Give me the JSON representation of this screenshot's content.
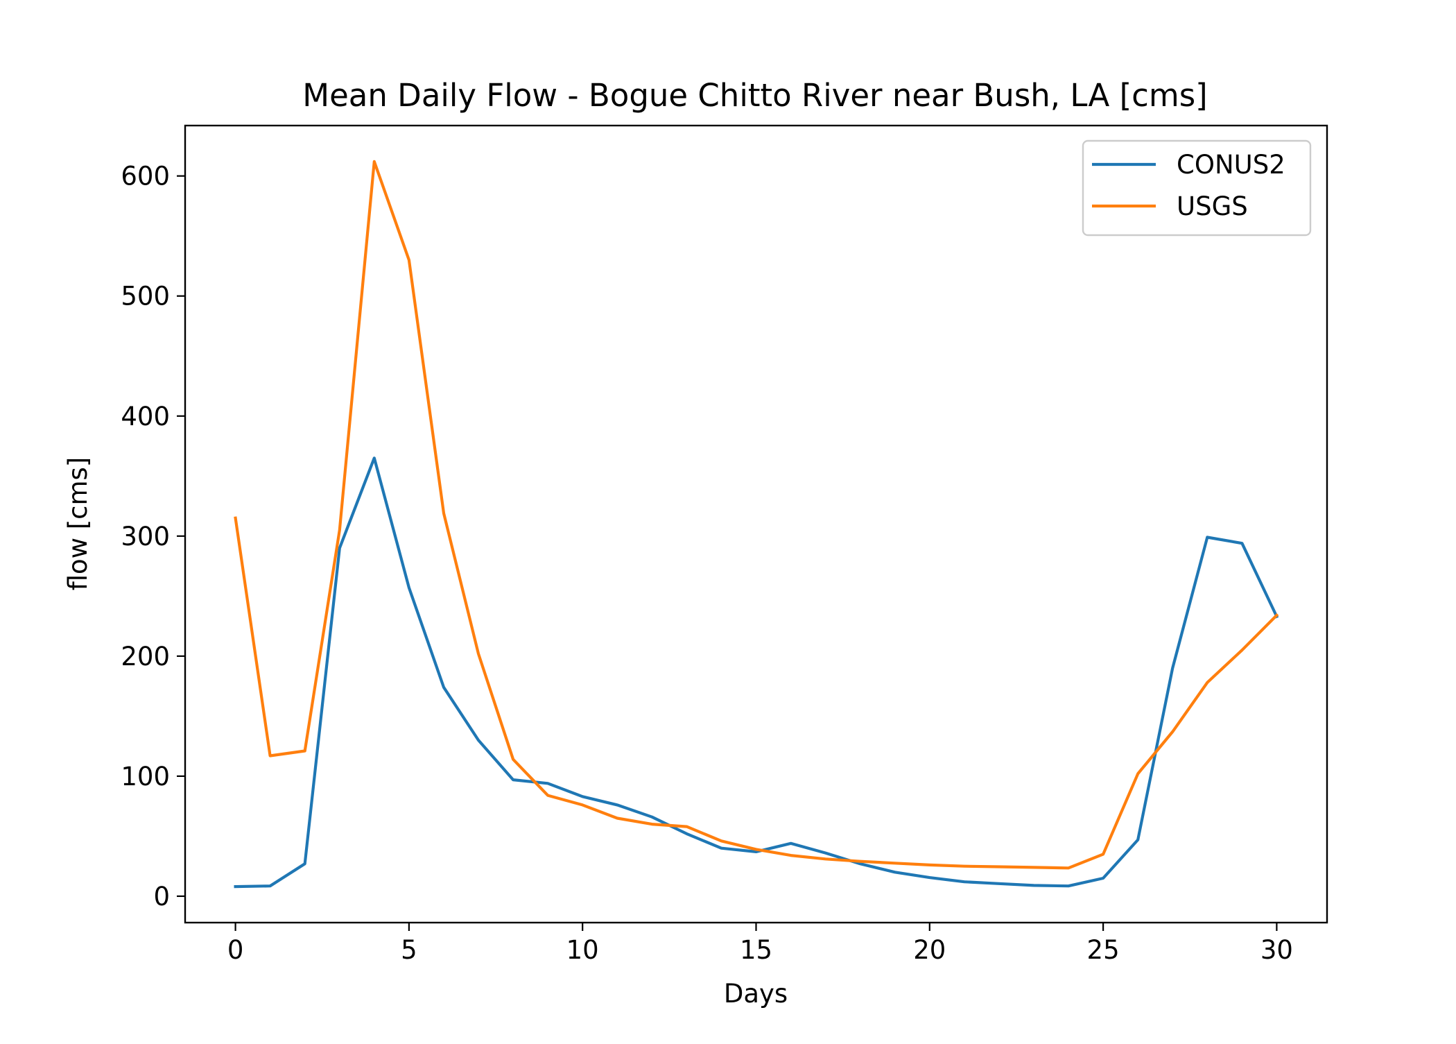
{
  "chart_data": {
    "type": "line",
    "title": "Mean Daily Flow - Bogue Chitto River near Bush, LA [cms]",
    "xlabel": "Days",
    "ylabel": "flow [cms]",
    "xlim": [
      -1.45,
      31.45
    ],
    "ylim": [
      -22,
      642
    ],
    "xticks": [
      0,
      5,
      10,
      15,
      20,
      25,
      30
    ],
    "yticks": [
      0,
      100,
      200,
      300,
      400,
      500,
      600
    ],
    "grid": false,
    "legend_position": "top-right",
    "x": [
      0,
      1,
      2,
      3,
      4,
      5,
      6,
      7,
      8,
      9,
      10,
      11,
      12,
      13,
      14,
      15,
      16,
      17,
      18,
      19,
      20,
      21,
      22,
      23,
      24,
      25,
      26,
      27,
      28,
      29,
      30
    ],
    "series": [
      {
        "name": "CONUS2",
        "color": "#1f77b4",
        "values": [
          8,
          8.5,
          27,
          290,
          365,
          257,
          174,
          130,
          97,
          94,
          83,
          76,
          66,
          52,
          40,
          37,
          44,
          36,
          27,
          20,
          15.5,
          12,
          10.5,
          9,
          8.5,
          15,
          47,
          190,
          299,
          294,
          233
        ]
      },
      {
        "name": "USGS",
        "color": "#ff7f0e",
        "values": [
          315,
          117,
          121,
          305,
          612,
          530,
          319,
          202,
          114,
          84,
          76,
          65,
          60,
          58,
          46,
          39,
          34,
          31,
          29,
          27.5,
          26,
          25,
          24.5,
          24,
          23.5,
          35,
          102,
          137,
          178,
          205,
          234
        ]
      }
    ]
  }
}
